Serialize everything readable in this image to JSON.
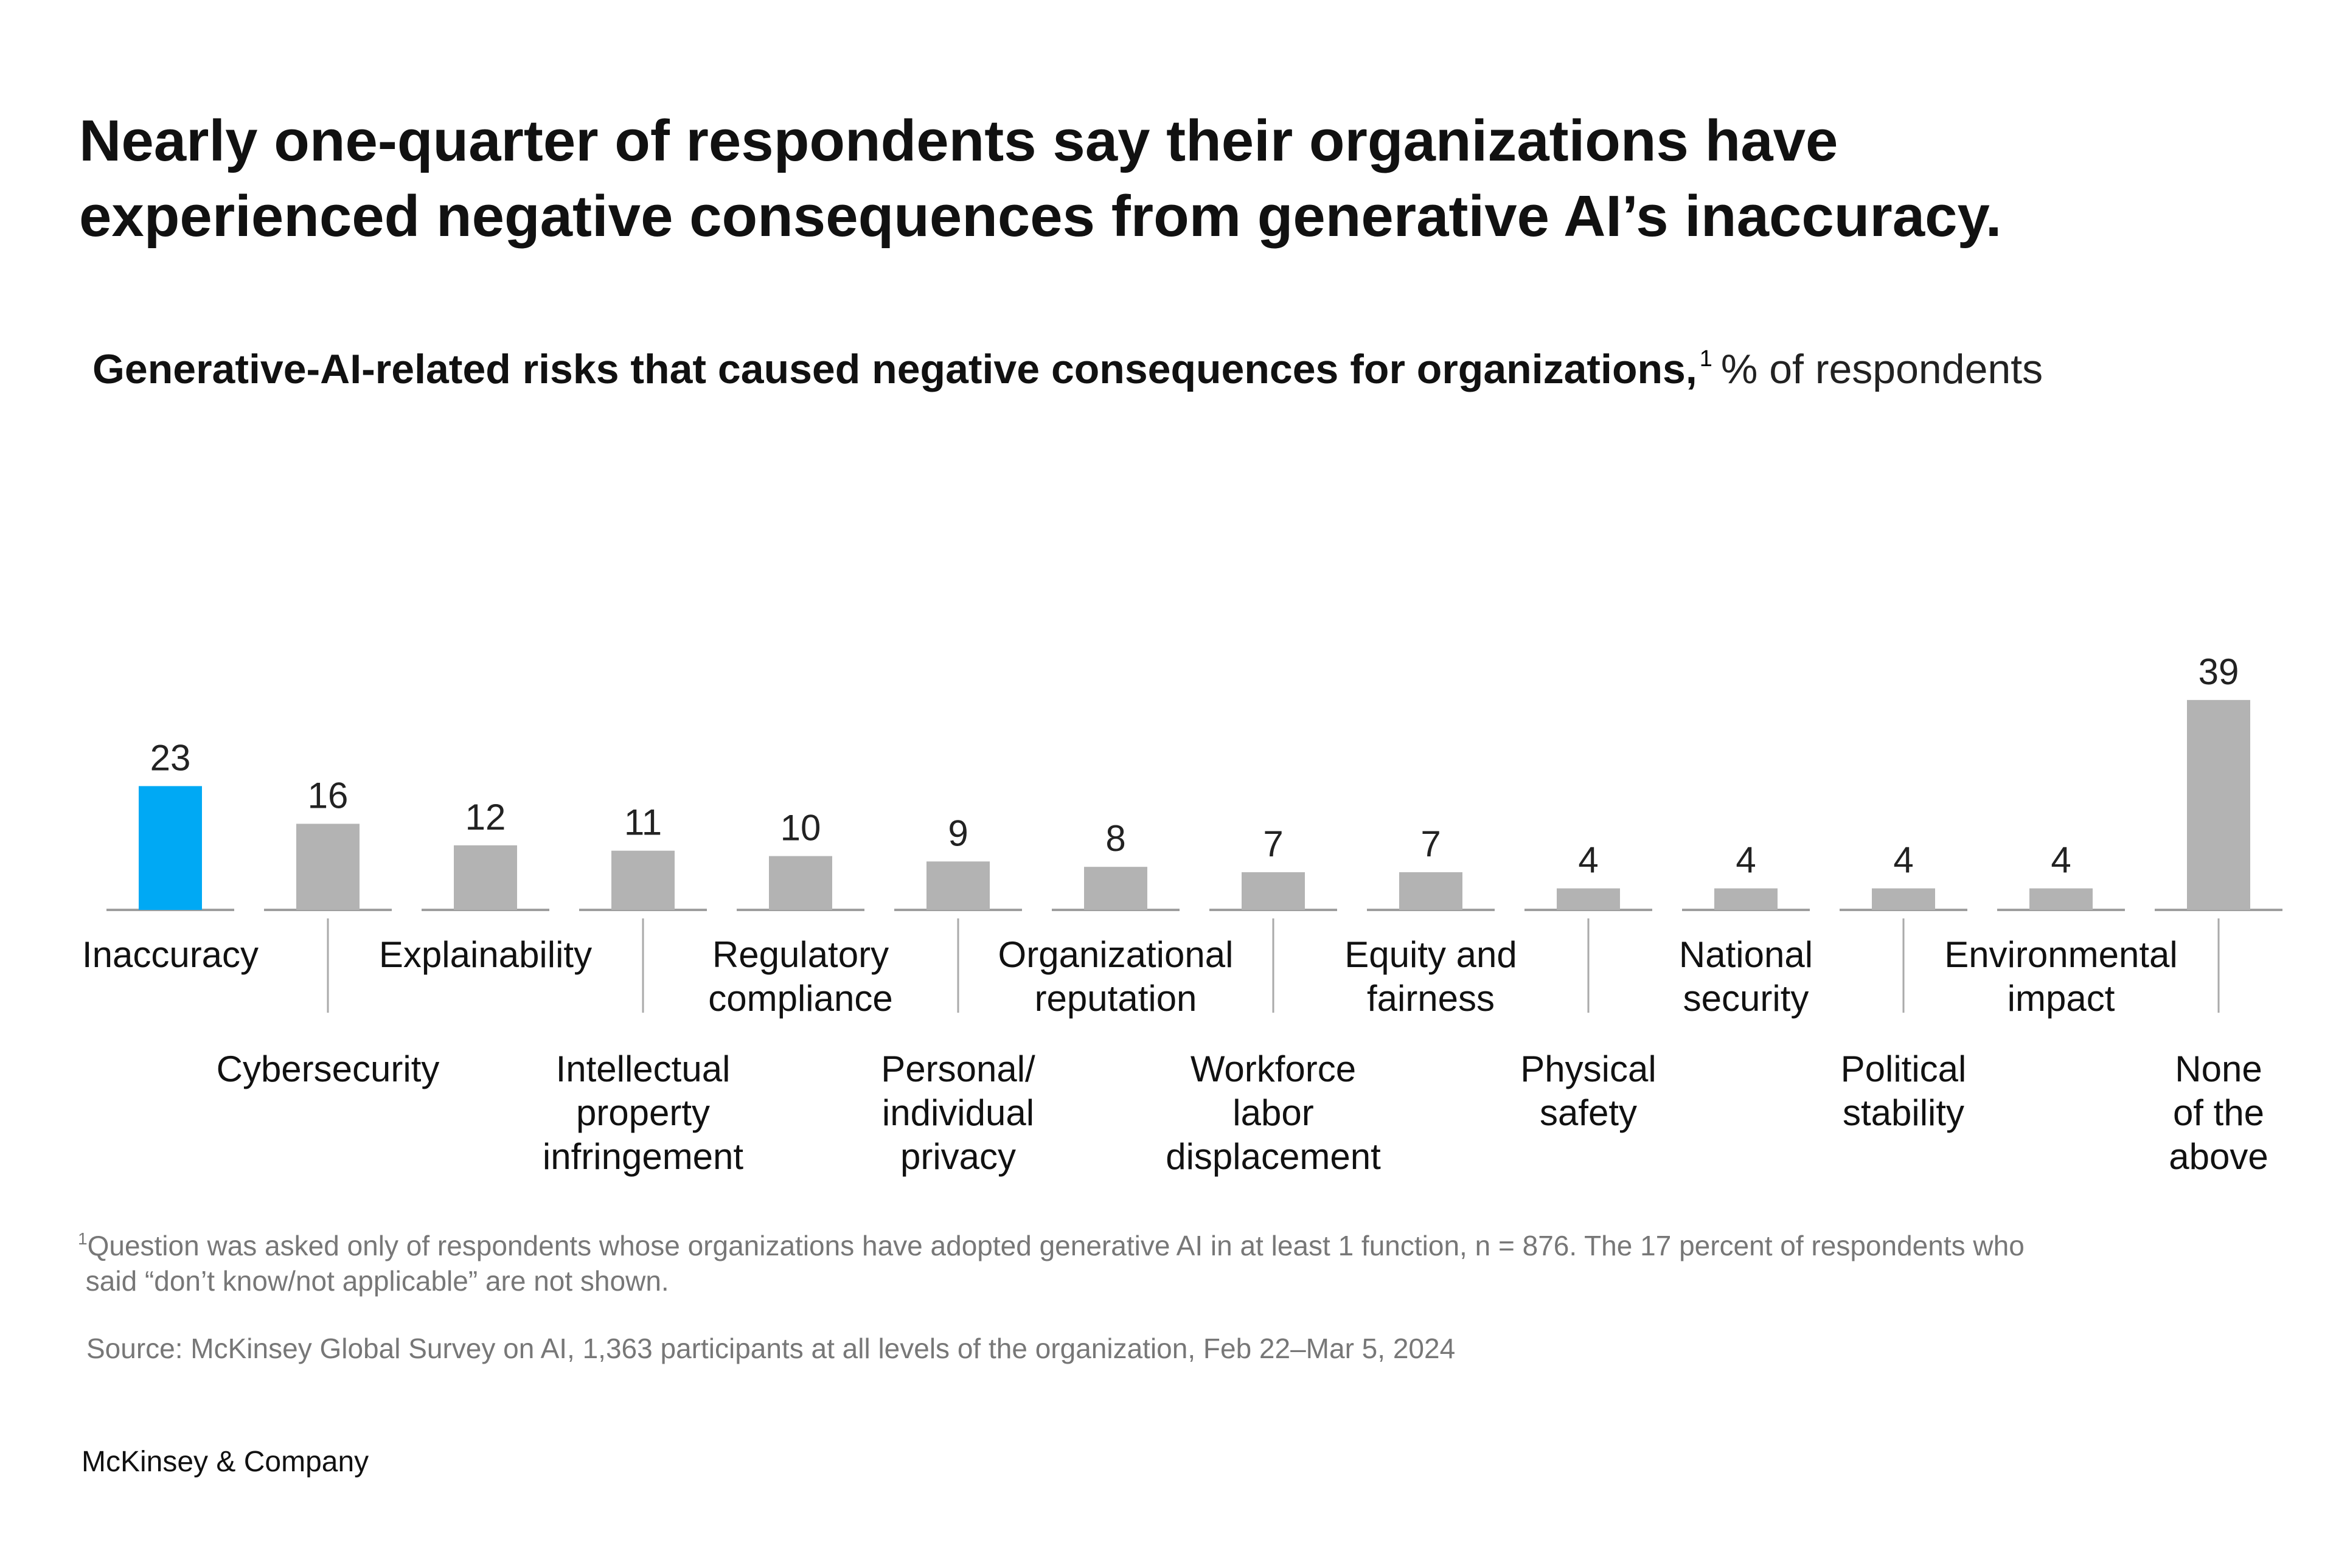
{
  "headline": {
    "line1": "Nearly one-quarter of respondents say their organizations have",
    "line2": "experienced negative consequences from generative AI’s inaccuracy."
  },
  "chart_data": {
    "type": "bar",
    "title": "Generative-AI-related risks that caused negative consequences for organizations,",
    "title_footnote_marker": "1",
    "unit_label": "% of respondents",
    "categories": [
      [
        "Inaccuracy"
      ],
      [
        "Cybersecurity"
      ],
      [
        "Explainability"
      ],
      [
        "Intellectual",
        "property",
        "infringement"
      ],
      [
        "Regulatory",
        "compliance"
      ],
      [
        "Personal/",
        "individual",
        "privacy"
      ],
      [
        "Organizational",
        "reputation"
      ],
      [
        "Workforce",
        "labor",
        "displacement"
      ],
      [
        "Equity and",
        "fairness"
      ],
      [
        "Physical",
        "safety"
      ],
      [
        "National",
        "security"
      ],
      [
        "Political",
        "stability"
      ],
      [
        "Environmental",
        "impact"
      ],
      [
        "None",
        "of the",
        "above"
      ]
    ],
    "values": [
      23,
      16,
      12,
      11,
      10,
      9,
      8,
      7,
      7,
      4,
      4,
      4,
      4,
      39
    ],
    "highlight_index": 0,
    "colors": {
      "highlight": "#00A9F4",
      "default": "#B3B3B3",
      "baseline": "#9E9E9E",
      "leader": "#AAAAAA"
    },
    "xlabel": "",
    "ylabel": "",
    "ylim": [
      0,
      39
    ],
    "grid": false
  },
  "footnote": {
    "marker": "1",
    "line1": "Question was asked only of respondents whose organizations have adopted generative AI in at least 1 function, n = 876. The 17 percent of respondents who",
    "line2": "said “don’t know/not applicable” are not shown."
  },
  "source": "Source: McKinsey Global Survey on AI, 1,363 participants at all levels of the organization, Feb 22–Mar 5, 2024",
  "brand": "McKinsey & Company"
}
